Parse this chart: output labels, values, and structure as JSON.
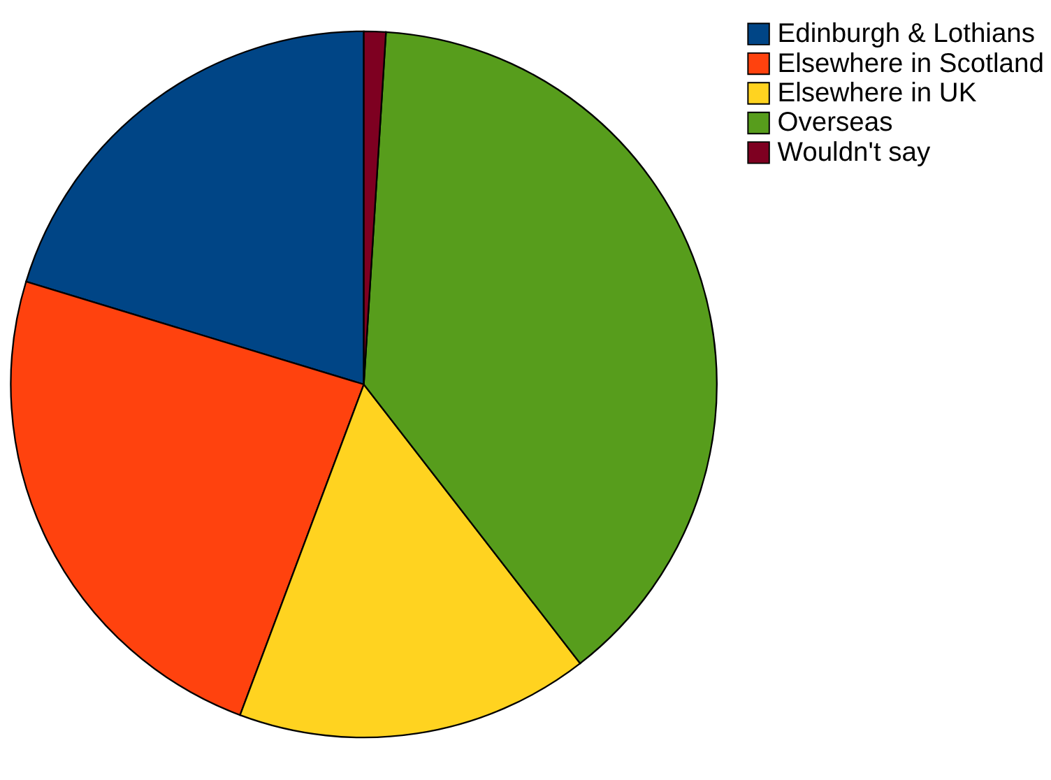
{
  "chart_data": {
    "type": "pie",
    "categories": [
      "Edinburgh & Lothians",
      "Elsewhere in Scotland",
      "Elsewhere in UK",
      "Overseas",
      "Wouldn't say"
    ],
    "values": [
      20.3,
      24.0,
      16.2,
      38.5,
      1.0
    ],
    "colors": [
      "#004586",
      "#ff420e",
      "#ffd320",
      "#579d1c",
      "#7e0021"
    ],
    "legend": "right"
  }
}
